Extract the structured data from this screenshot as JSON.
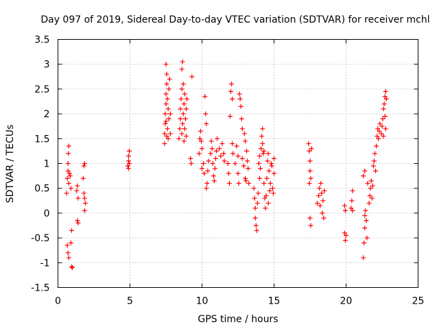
{
  "chart_data": {
    "type": "scatter",
    "title": "Day 097 of 2019, Sidereal Day-to-day VTEC variation (SDTVAR) for receiver mchl",
    "xlabel": "GPS time / hours",
    "ylabel": "SDTVAR / TECUs",
    "xlim": [
      0,
      25
    ],
    "ylim": [
      -1.5,
      3.5
    ],
    "grid": true,
    "marker": "+",
    "color": "#ff0000",
    "x_ticks": [
      "0",
      "5",
      "10",
      "15",
      "20",
      "25"
    ],
    "y_ticks": [
      "-1.5",
      "-1",
      "-0.5",
      "0",
      "0.5",
      "1",
      "1.5",
      "2",
      "2.5",
      "3",
      "3.5"
    ],
    "series": [
      {
        "name": "SDTVAR",
        "points": [
          [
            0.6,
            0.4
          ],
          [
            0.65,
            0.7
          ],
          [
            0.7,
            0.85
          ],
          [
            0.7,
            1.0
          ],
          [
            0.72,
            1.2
          ],
          [
            0.75,
            1.35
          ],
          [
            0.75,
            0.6
          ],
          [
            0.8,
            0.8
          ],
          [
            0.85,
            0.75
          ],
          [
            0.9,
            0.5
          ],
          [
            0.65,
            -0.65
          ],
          [
            0.7,
            -0.8
          ],
          [
            0.75,
            -0.9
          ],
          [
            0.9,
            -0.6
          ],
          [
            0.95,
            -0.35
          ],
          [
            0.95,
            -1.08
          ],
          [
            1.0,
            -1.1
          ],
          [
            1.3,
            0.45
          ],
          [
            1.35,
            0.55
          ],
          [
            1.4,
            0.3
          ],
          [
            1.35,
            -0.15
          ],
          [
            1.4,
            -0.2
          ],
          [
            1.75,
            0.7
          ],
          [
            1.8,
            0.95
          ],
          [
            1.85,
            1.0
          ],
          [
            1.8,
            0.4
          ],
          [
            1.85,
            0.3
          ],
          [
            1.9,
            0.2
          ],
          [
            1.85,
            0.05
          ],
          [
            4.85,
            0.95
          ],
          [
            4.9,
            1.05
          ],
          [
            4.9,
            1.15
          ],
          [
            4.95,
            1.25
          ],
          [
            4.95,
            1.0
          ],
          [
            4.9,
            0.9
          ],
          [
            7.4,
            1.4
          ],
          [
            7.4,
            1.6
          ],
          [
            7.45,
            1.8
          ],
          [
            7.45,
            2.0
          ],
          [
            7.5,
            2.2
          ],
          [
            7.5,
            2.4
          ],
          [
            7.55,
            2.6
          ],
          [
            7.55,
            2.8
          ],
          [
            7.5,
            3.0
          ],
          [
            7.6,
            2.3
          ],
          [
            7.6,
            1.7
          ],
          [
            7.65,
            1.5
          ],
          [
            7.65,
            2.1
          ],
          [
            7.7,
            1.9
          ],
          [
            7.7,
            2.5
          ],
          [
            7.75,
            2.7
          ],
          [
            7.8,
            1.6
          ],
          [
            7.8,
            2.0
          ],
          [
            7.5,
            1.85
          ],
          [
            7.55,
            1.55
          ],
          [
            8.4,
            1.5
          ],
          [
            8.45,
            1.7
          ],
          [
            8.5,
            1.9
          ],
          [
            8.5,
            2.1
          ],
          [
            8.55,
            2.3
          ],
          [
            8.6,
            2.5
          ],
          [
            8.6,
            2.9
          ],
          [
            8.65,
            3.05
          ],
          [
            8.6,
            1.6
          ],
          [
            8.65,
            1.8
          ],
          [
            8.7,
            2.0
          ],
          [
            8.75,
            2.2
          ],
          [
            8.8,
            2.4
          ],
          [
            8.8,
            1.7
          ],
          [
            8.85,
            1.9
          ],
          [
            8.9,
            2.1
          ],
          [
            8.9,
            1.55
          ],
          [
            8.95,
            2.3
          ],
          [
            8.7,
            2.6
          ],
          [
            8.75,
            1.45
          ],
          [
            9.2,
            1.1
          ],
          [
            9.25,
            1.0
          ],
          [
            9.3,
            2.75
          ],
          [
            9.8,
            1.2
          ],
          [
            9.85,
            1.5
          ],
          [
            9.9,
            1.65
          ],
          [
            9.95,
            1.45
          ],
          [
            10.0,
            1.3
          ],
          [
            10.0,
            0.9
          ],
          [
            10.1,
            1.0
          ],
          [
            10.15,
            0.8
          ],
          [
            10.2,
            2.35
          ],
          [
            10.25,
            2.0
          ],
          [
            10.3,
            1.8
          ],
          [
            10.3,
            0.5
          ],
          [
            10.35,
            0.6
          ],
          [
            10.4,
            0.85
          ],
          [
            10.45,
            1.05
          ],
          [
            10.6,
            1.2
          ],
          [
            10.65,
            1.45
          ],
          [
            10.7,
            1.3
          ],
          [
            10.75,
            1.0
          ],
          [
            10.8,
            0.75
          ],
          [
            10.85,
            0.65
          ],
          [
            10.9,
            0.9
          ],
          [
            10.95,
            1.1
          ],
          [
            11.0,
            1.25
          ],
          [
            11.05,
            1.5
          ],
          [
            11.2,
            1.3
          ],
          [
            11.3,
            1.15
          ],
          [
            11.4,
            1.4
          ],
          [
            11.5,
            1.2
          ],
          [
            11.55,
            1.05
          ],
          [
            11.8,
            1.0
          ],
          [
            11.85,
            0.8
          ],
          [
            11.9,
            0.6
          ],
          [
            11.95,
            1.95
          ],
          [
            12.0,
            2.45
          ],
          [
            12.05,
            2.6
          ],
          [
            12.1,
            2.3
          ],
          [
            12.1,
            1.4
          ],
          [
            12.15,
            1.2
          ],
          [
            12.3,
            1.0
          ],
          [
            12.4,
            1.35
          ],
          [
            12.5,
            1.15
          ],
          [
            12.5,
            0.8
          ],
          [
            12.55,
            0.6
          ],
          [
            12.6,
            2.4
          ],
          [
            12.65,
            2.3
          ],
          [
            12.7,
            2.15
          ],
          [
            12.75,
            1.9
          ],
          [
            12.8,
            1.7
          ],
          [
            12.8,
            1.1
          ],
          [
            12.9,
            0.95
          ],
          [
            12.95,
            1.6
          ],
          [
            13.0,
            1.45
          ],
          [
            13.0,
            0.7
          ],
          [
            13.05,
            0.65
          ],
          [
            13.1,
            1.25
          ],
          [
            13.15,
            1.05
          ],
          [
            13.2,
            0.9
          ],
          [
            13.25,
            0.6
          ],
          [
            13.6,
            0.5
          ],
          [
            13.65,
            0.3
          ],
          [
            13.7,
            0.1
          ],
          [
            13.7,
            -0.1
          ],
          [
            13.75,
            -0.25
          ],
          [
            13.8,
            -0.35
          ],
          [
            13.85,
            0.2
          ],
          [
            13.9,
            0.4
          ],
          [
            13.95,
            1.0
          ],
          [
            14.0,
            1.15
          ],
          [
            14.0,
            0.7
          ],
          [
            14.05,
            0.9
          ],
          [
            14.1,
            1.3
          ],
          [
            14.15,
            1.55
          ],
          [
            14.2,
            1.7
          ],
          [
            14.2,
            1.4
          ],
          [
            14.25,
            1.2
          ],
          [
            14.3,
            0.6
          ],
          [
            14.35,
            0.3
          ],
          [
            14.4,
            0.1
          ],
          [
            14.45,
            0.35
          ],
          [
            14.5,
            0.7
          ],
          [
            14.55,
            1.05
          ],
          [
            14.6,
            1.2
          ],
          [
            14.65,
            0.85
          ],
          [
            14.7,
            0.45
          ],
          [
            14.75,
            0.6
          ],
          [
            14.8,
            1.0
          ],
          [
            14.85,
            0.95
          ],
          [
            14.9,
            0.5
          ],
          [
            14.95,
            0.4
          ],
          [
            15.0,
            0.8
          ],
          [
            15.0,
            1.1
          ],
          [
            14.6,
            0.2
          ],
          [
            14.3,
            1.25
          ],
          [
            17.4,
            1.4
          ],
          [
            17.45,
            1.25
          ],
          [
            17.5,
            1.05
          ],
          [
            17.5,
            0.85
          ],
          [
            17.55,
            0.7
          ],
          [
            17.45,
            0.6
          ],
          [
            17.5,
            -0.1
          ],
          [
            17.55,
            -0.25
          ],
          [
            17.6,
            1.3
          ],
          [
            18.0,
            0.2
          ],
          [
            18.1,
            0.35
          ],
          [
            18.15,
            0.5
          ],
          [
            18.2,
            0.15
          ],
          [
            18.25,
            0.6
          ],
          [
            18.3,
            0.4
          ],
          [
            18.35,
            0.0
          ],
          [
            18.4,
            0.25
          ],
          [
            18.45,
            -0.1
          ],
          [
            18.5,
            0.45
          ],
          [
            19.9,
            0.15
          ],
          [
            19.95,
            0.05
          ],
          [
            19.9,
            -0.4
          ],
          [
            19.95,
            -0.55
          ],
          [
            20.0,
            -0.45
          ],
          [
            20.35,
            0.1
          ],
          [
            20.4,
            0.25
          ],
          [
            20.45,
            0.45
          ],
          [
            20.45,
            0.05
          ],
          [
            21.2,
            -0.9
          ],
          [
            21.25,
            -0.6
          ],
          [
            21.3,
            -0.3
          ],
          [
            21.3,
            -0.05
          ],
          [
            21.35,
            0.05
          ],
          [
            21.4,
            -0.15
          ],
          [
            21.45,
            -0.5
          ],
          [
            21.2,
            0.75
          ],
          [
            21.3,
            0.85
          ],
          [
            21.5,
            0.6
          ],
          [
            21.6,
            0.2
          ],
          [
            21.65,
            0.35
          ],
          [
            21.7,
            0.5
          ],
          [
            21.75,
            0.65
          ],
          [
            21.8,
            0.3
          ],
          [
            21.85,
            0.55
          ],
          [
            21.9,
            0.95
          ],
          [
            21.95,
            1.05
          ],
          [
            22.0,
            1.2
          ],
          [
            22.05,
            0.85
          ],
          [
            22.1,
            1.35
          ],
          [
            22.15,
            1.55
          ],
          [
            22.2,
            1.7
          ],
          [
            22.25,
            1.5
          ],
          [
            22.3,
            1.65
          ],
          [
            22.35,
            1.8
          ],
          [
            22.45,
            1.6
          ],
          [
            22.5,
            1.75
          ],
          [
            22.55,
            1.9
          ],
          [
            22.6,
            2.1
          ],
          [
            22.6,
            1.55
          ],
          [
            22.65,
            2.2
          ],
          [
            22.7,
            2.35
          ],
          [
            22.75,
            2.45
          ],
          [
            22.8,
            2.3
          ],
          [
            22.75,
            1.7
          ],
          [
            22.7,
            1.95
          ]
        ]
      }
    ]
  }
}
